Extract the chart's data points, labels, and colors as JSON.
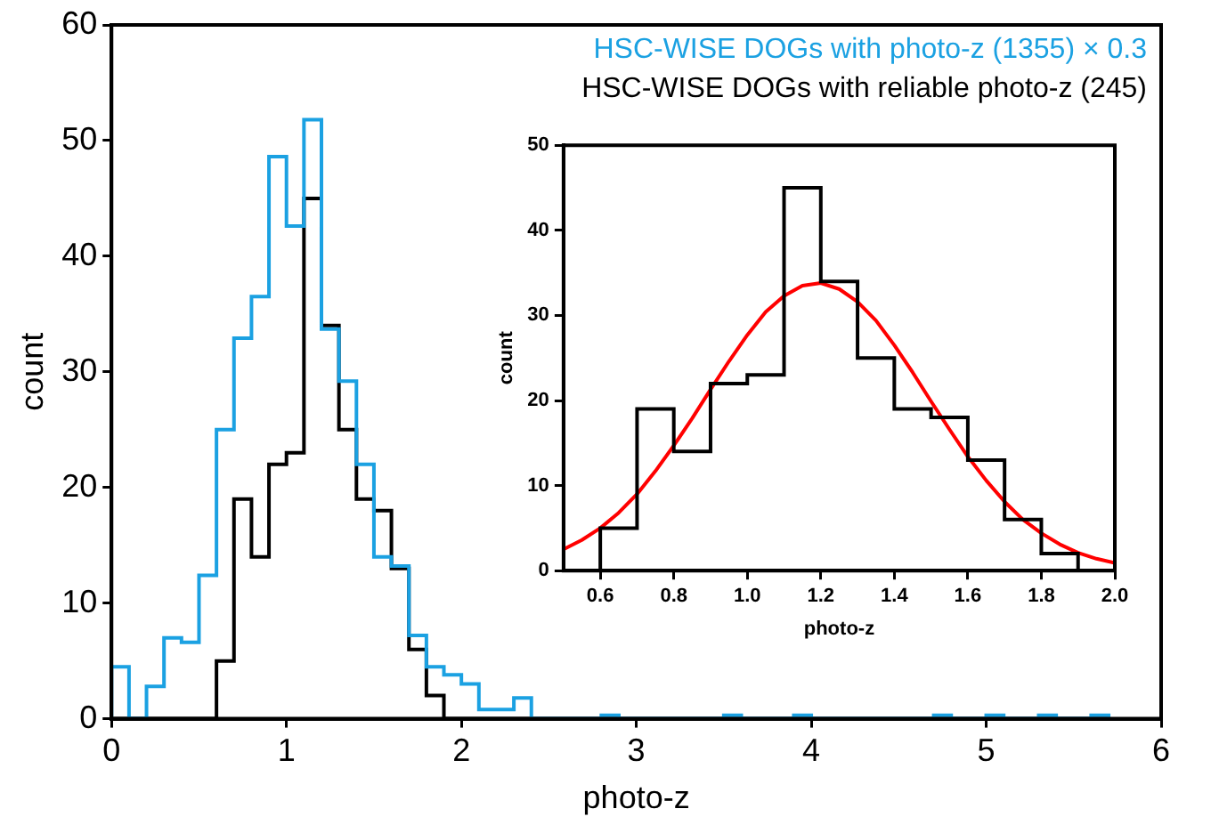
{
  "chart_data": [
    {
      "type": "histogram",
      "xlabel": "photo-z",
      "ylabel": "count",
      "xlim": [
        0,
        6
      ],
      "xticks": [
        0,
        1,
        2,
        3,
        4,
        5,
        6
      ],
      "ylim": [
        0,
        60
      ],
      "yticks": [
        0,
        10,
        20,
        30,
        40,
        50,
        60
      ],
      "grid": false,
      "bins": [
        0,
        0.1,
        0.2,
        0.3,
        0.4,
        0.5,
        0.6,
        0.7,
        0.8,
        0.9,
        1.0,
        1.1,
        1.2,
        1.3,
        1.4,
        1.5,
        1.6,
        1.7,
        1.8,
        1.9,
        2.0,
        2.1,
        2.2,
        2.3,
        2.4,
        2.5,
        2.6,
        2.7,
        2.8,
        2.9,
        3.0,
        3.1,
        3.2,
        3.3,
        3.4,
        3.5,
        3.6,
        3.7,
        3.8,
        3.9,
        4.0,
        4.1,
        4.2,
        4.3,
        4.4,
        4.5,
        4.6,
        4.7,
        4.8,
        4.9,
        5.0,
        5.1,
        5.2,
        5.3,
        5.4,
        5.5,
        5.6,
        5.7
      ],
      "series": [
        {
          "name": "HSC-WISE DOGs with photo-z (1355) × 0.3",
          "color": "#1ba1e2",
          "values": [
            4.5,
            0,
            2.8,
            7,
            6.6,
            12.4,
            25,
            32.9,
            36.5,
            48.6,
            42.6,
            51.8,
            33.7,
            29.2,
            22,
            14,
            13.2,
            7.2,
            4.5,
            3.8,
            3,
            0.8,
            0.8,
            1.8,
            0,
            0,
            0,
            0,
            0.3,
            0,
            0,
            0,
            0,
            0,
            0,
            0.3,
            0,
            0,
            0,
            0.3,
            0,
            0,
            0,
            0,
            0,
            0,
            0,
            0.3,
            0,
            0,
            0.3,
            0,
            0,
            0.3,
            0,
            0,
            0.3
          ]
        },
        {
          "name": "HSC-WISE DOGs with reliable photo-z (245)",
          "color": "#000000",
          "values": [
            0,
            0,
            0,
            0,
            0,
            0,
            5,
            19,
            14,
            22,
            23,
            45,
            34,
            25,
            19,
            18,
            13,
            6,
            2,
            0,
            0,
            0,
            0,
            0,
            0,
            0,
            0,
            0,
            0,
            0,
            0,
            0,
            0,
            0,
            0,
            0,
            0,
            0,
            0,
            0,
            0,
            0,
            0,
            0,
            0,
            0,
            0,
            0,
            0,
            0,
            0,
            0,
            0,
            0,
            0,
            0,
            0
          ]
        }
      ]
    },
    {
      "type": "histogram",
      "xlabel": "photo-z",
      "ylabel": "count",
      "xlim": [
        0.5,
        2.0
      ],
      "xticks": [
        {
          "value": 0.6,
          "label": "0.6"
        },
        {
          "value": 0.8,
          "label": "0.8"
        },
        {
          "value": 1.0,
          "label": "1.0"
        },
        {
          "value": 1.2,
          "label": "1.2"
        },
        {
          "value": 1.4,
          "label": "1.4"
        },
        {
          "value": 1.6,
          "label": "1.6"
        },
        {
          "value": 1.8,
          "label": "1.8"
        },
        {
          "value": 2.0,
          "label": "2.0"
        }
      ],
      "ylim": [
        0,
        50
      ],
      "yticks": [
        0,
        10,
        20,
        30,
        40,
        50
      ],
      "grid": false,
      "bins": [
        0.6,
        0.7,
        0.8,
        0.9,
        1.0,
        1.1,
        1.2,
        1.3,
        1.4,
        1.5,
        1.6,
        1.7,
        1.8,
        1.9
      ],
      "series": [
        {
          "color": "#000000",
          "values": [
            5,
            19,
            14,
            22,
            23,
            45,
            34,
            25,
            19,
            18,
            13,
            6,
            2
          ]
        },
        {
          "type": "line",
          "color": "#ff0000",
          "x": [
            0.5,
            0.55,
            0.6,
            0.65,
            0.7,
            0.75,
            0.8,
            0.85,
            0.9,
            0.95,
            1.0,
            1.05,
            1.1,
            1.15,
            1.2,
            1.25,
            1.3,
            1.35,
            1.4,
            1.45,
            1.5,
            1.55,
            1.6,
            1.65,
            1.7,
            1.75,
            1.8,
            1.85,
            1.9,
            1.95,
            2.0
          ],
          "values": [
            2.5,
            3.6,
            5.0,
            6.8,
            9.0,
            11.7,
            14.7,
            17.9,
            21.3,
            24.6,
            27.7,
            30.4,
            32.3,
            33.5,
            33.8,
            33.1,
            31.6,
            29.4,
            26.5,
            23.3,
            19.9,
            16.6,
            13.4,
            10.6,
            8.1,
            6.0,
            4.4,
            3.1,
            2.1,
            1.4,
            0.9
          ]
        }
      ]
    }
  ]
}
